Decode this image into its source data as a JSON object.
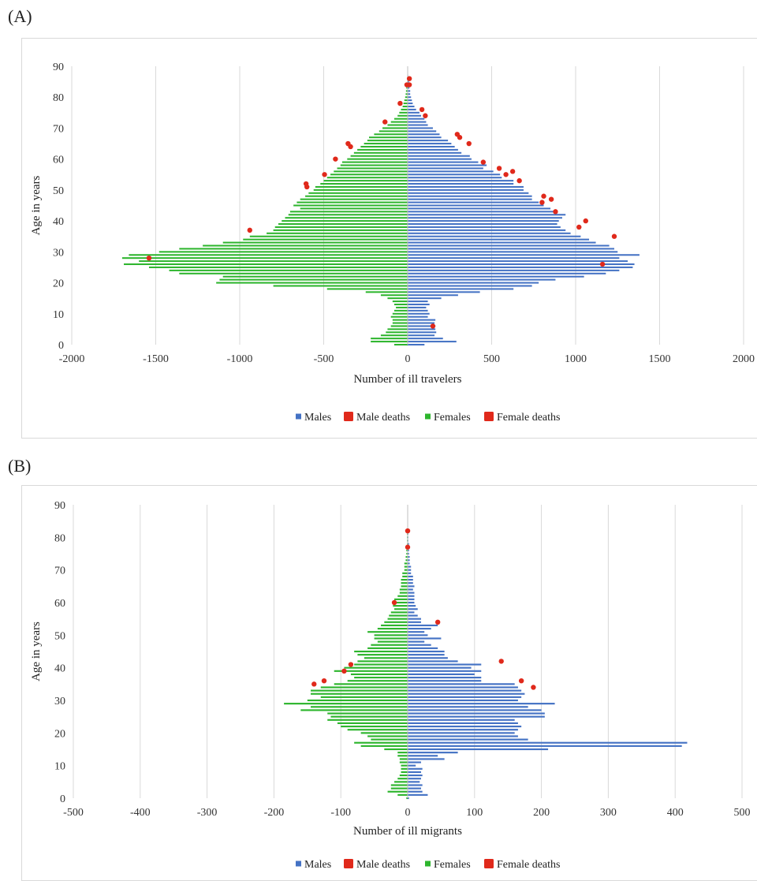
{
  "panels": {
    "a_label": "(A)",
    "b_label": "(B)"
  },
  "colors": {
    "males": "#4472C4",
    "females": "#2DB52D",
    "deaths": "#E0291B",
    "grid": "#d9d9d9"
  },
  "chart_data": [
    {
      "id": "A",
      "type": "bar",
      "orientation": "horizontal",
      "xlabel": "Number of ill travelers",
      "ylabel": "Age in years",
      "xlim": [
        -2000,
        2000
      ],
      "xticks": [
        -2000,
        -1500,
        -1000,
        -500,
        0,
        500,
        1000,
        1500,
        2000
      ],
      "ylim": [
        0,
        90
      ],
      "yticks": [
        0,
        10,
        20,
        30,
        40,
        50,
        60,
        70,
        80,
        90
      ],
      "grid": true,
      "legend_placement": "bottom",
      "legend": [
        "Males",
        "Male deaths",
        "Females",
        "Female deaths"
      ],
      "series": [
        {
          "name": "Males",
          "color": "#4472C4",
          "values": [
            100,
            290,
            210,
            160,
            170,
            165,
            165,
            160,
            165,
            120,
            130,
            120,
            110,
            130,
            120,
            200,
            300,
            430,
            630,
            740,
            780,
            880,
            1050,
            1180,
            1260,
            1340,
            1350,
            1310,
            1260,
            1380,
            1250,
            1230,
            1200,
            1120,
            1080,
            1030,
            970,
            940,
            910,
            890,
            900,
            920,
            940,
            890,
            850,
            810,
            780,
            740,
            740,
            720,
            690,
            690,
            630,
            630,
            560,
            550,
            510,
            450,
            470,
            420,
            380,
            370,
            320,
            300,
            280,
            260,
            240,
            200,
            190,
            170,
            150,
            120,
            110,
            100,
            80,
            70,
            50,
            40,
            30,
            25,
            20,
            15,
            15,
            10,
            10,
            8,
            5,
            3,
            2,
            1,
            0
          ]
        },
        {
          "name": "Females",
          "color": "#2DB52D",
          "values": [
            -80,
            -220,
            -220,
            -160,
            -130,
            -120,
            -100,
            -90,
            -90,
            -100,
            -90,
            -80,
            -70,
            -80,
            -90,
            -120,
            -160,
            -250,
            -480,
            -800,
            -1140,
            -1120,
            -1100,
            -1360,
            -1420,
            -1540,
            -1690,
            -1600,
            -1700,
            -1660,
            -1480,
            -1360,
            -1220,
            -1100,
            -980,
            -940,
            -840,
            -800,
            -790,
            -770,
            -750,
            -730,
            -710,
            -700,
            -640,
            -680,
            -660,
            -640,
            -610,
            -590,
            -560,
            -550,
            -520,
            -500,
            -480,
            -460,
            -440,
            -420,
            -400,
            -390,
            -360,
            -340,
            -320,
            -300,
            -280,
            -260,
            -240,
            -230,
            -200,
            -170,
            -150,
            -120,
            -100,
            -80,
            -60,
            -50,
            -40,
            -30,
            -25,
            -20,
            -15,
            -12,
            -10,
            -8,
            -5,
            -3,
            -2,
            -1,
            0,
            0,
            0
          ]
        },
        {
          "name": "Male deaths",
          "color": "#E0291B",
          "points": [
            [
              150,
              6
            ],
            [
              1160,
              26
            ],
            [
              1230,
              35
            ],
            [
              1020,
              38
            ],
            [
              1060,
              40
            ],
            [
              880,
              43
            ],
            [
              800,
              46
            ],
            [
              855,
              47
            ],
            [
              810,
              48
            ],
            [
              665,
              53
            ],
            [
              585,
              55
            ],
            [
              625,
              56
            ],
            [
              545,
              57
            ],
            [
              450,
              59
            ],
            [
              365,
              65
            ],
            [
              310,
              67
            ],
            [
              295,
              68
            ],
            [
              105,
              74
            ],
            [
              85,
              76
            ],
            [
              10,
              84
            ],
            [
              10,
              86
            ]
          ]
        },
        {
          "name": "Female deaths",
          "color": "#E0291B",
          "points": [
            [
              -1540,
              28
            ],
            [
              -940,
              37
            ],
            [
              -600,
              51
            ],
            [
              -605,
              52
            ],
            [
              -495,
              55
            ],
            [
              -430,
              60
            ],
            [
              -340,
              64
            ],
            [
              -355,
              65
            ],
            [
              -135,
              72
            ],
            [
              -45,
              78
            ],
            [
              -5,
              84
            ]
          ]
        }
      ]
    },
    {
      "id": "B",
      "type": "bar",
      "orientation": "horizontal",
      "xlabel": "Number of ill migrants",
      "ylabel": "Age in years",
      "xlim": [
        -500,
        500
      ],
      "xticks": [
        -500,
        -400,
        -300,
        -200,
        -100,
        0,
        100,
        200,
        300,
        400,
        500
      ],
      "ylim": [
        0,
        90
      ],
      "yticks": [
        0,
        10,
        20,
        30,
        40,
        50,
        60,
        70,
        80,
        90
      ],
      "grid": true,
      "legend_placement": "bottom",
      "legend": [
        "Males",
        "Male deaths",
        "Females",
        "Female deaths"
      ],
      "series": [
        {
          "name": "Males",
          "color": "#4472C4",
          "values": [
            2,
            30,
            22,
            20,
            22,
            18,
            20,
            22,
            20,
            22,
            12,
            20,
            55,
            45,
            75,
            210,
            410,
            418,
            180,
            165,
            160,
            165,
            170,
            165,
            160,
            205,
            205,
            200,
            180,
            220,
            165,
            170,
            175,
            170,
            165,
            160,
            110,
            110,
            100,
            110,
            95,
            110,
            75,
            60,
            55,
            55,
            45,
            35,
            25,
            50,
            30,
            25,
            35,
            45,
            20,
            20,
            15,
            10,
            15,
            12,
            10,
            10,
            10,
            10,
            8,
            10,
            8,
            8,
            8,
            5,
            5,
            5,
            3,
            3,
            3,
            2,
            2,
            2,
            2,
            1,
            1,
            1,
            0,
            0,
            0,
            0,
            0,
            0,
            0,
            0,
            0
          ]
        },
        {
          "name": "Females",
          "color": "#2DB52D",
          "values": [
            -2,
            -15,
            -30,
            -25,
            -25,
            -20,
            -15,
            -12,
            -10,
            -10,
            -10,
            -12,
            -12,
            -15,
            -15,
            -35,
            -70,
            -80,
            -55,
            -60,
            -70,
            -90,
            -100,
            -105,
            -120,
            -115,
            -120,
            -160,
            -145,
            -185,
            -150,
            -130,
            -145,
            -145,
            -130,
            -110,
            -90,
            -80,
            -85,
            -110,
            -95,
            -80,
            -75,
            -65,
            -75,
            -80,
            -60,
            -55,
            -45,
            -50,
            -50,
            -60,
            -45,
            -40,
            -35,
            -30,
            -28,
            -25,
            -20,
            -22,
            -20,
            -20,
            -15,
            -12,
            -12,
            -10,
            -10,
            -10,
            -8,
            -8,
            -5,
            -5,
            -5,
            -3,
            -3,
            -2,
            -2,
            -2,
            -1,
            -1,
            -1,
            -1,
            -1,
            0,
            0,
            0,
            0,
            0,
            0,
            0,
            0
          ]
        },
        {
          "name": "Male deaths",
          "color": "#E0291B",
          "points": [
            [
              45,
              54
            ],
            [
              140,
              42
            ],
            [
              170,
              36
            ],
            [
              188,
              34
            ],
            [
              0,
              77
            ],
            [
              0,
              82
            ]
          ]
        },
        {
          "name": "Female deaths",
          "color": "#E0291B",
          "points": [
            [
              -20,
              60
            ],
            [
              -85,
              41
            ],
            [
              -95,
              39
            ],
            [
              -125,
              36
            ],
            [
              -140,
              35
            ]
          ]
        }
      ]
    }
  ]
}
